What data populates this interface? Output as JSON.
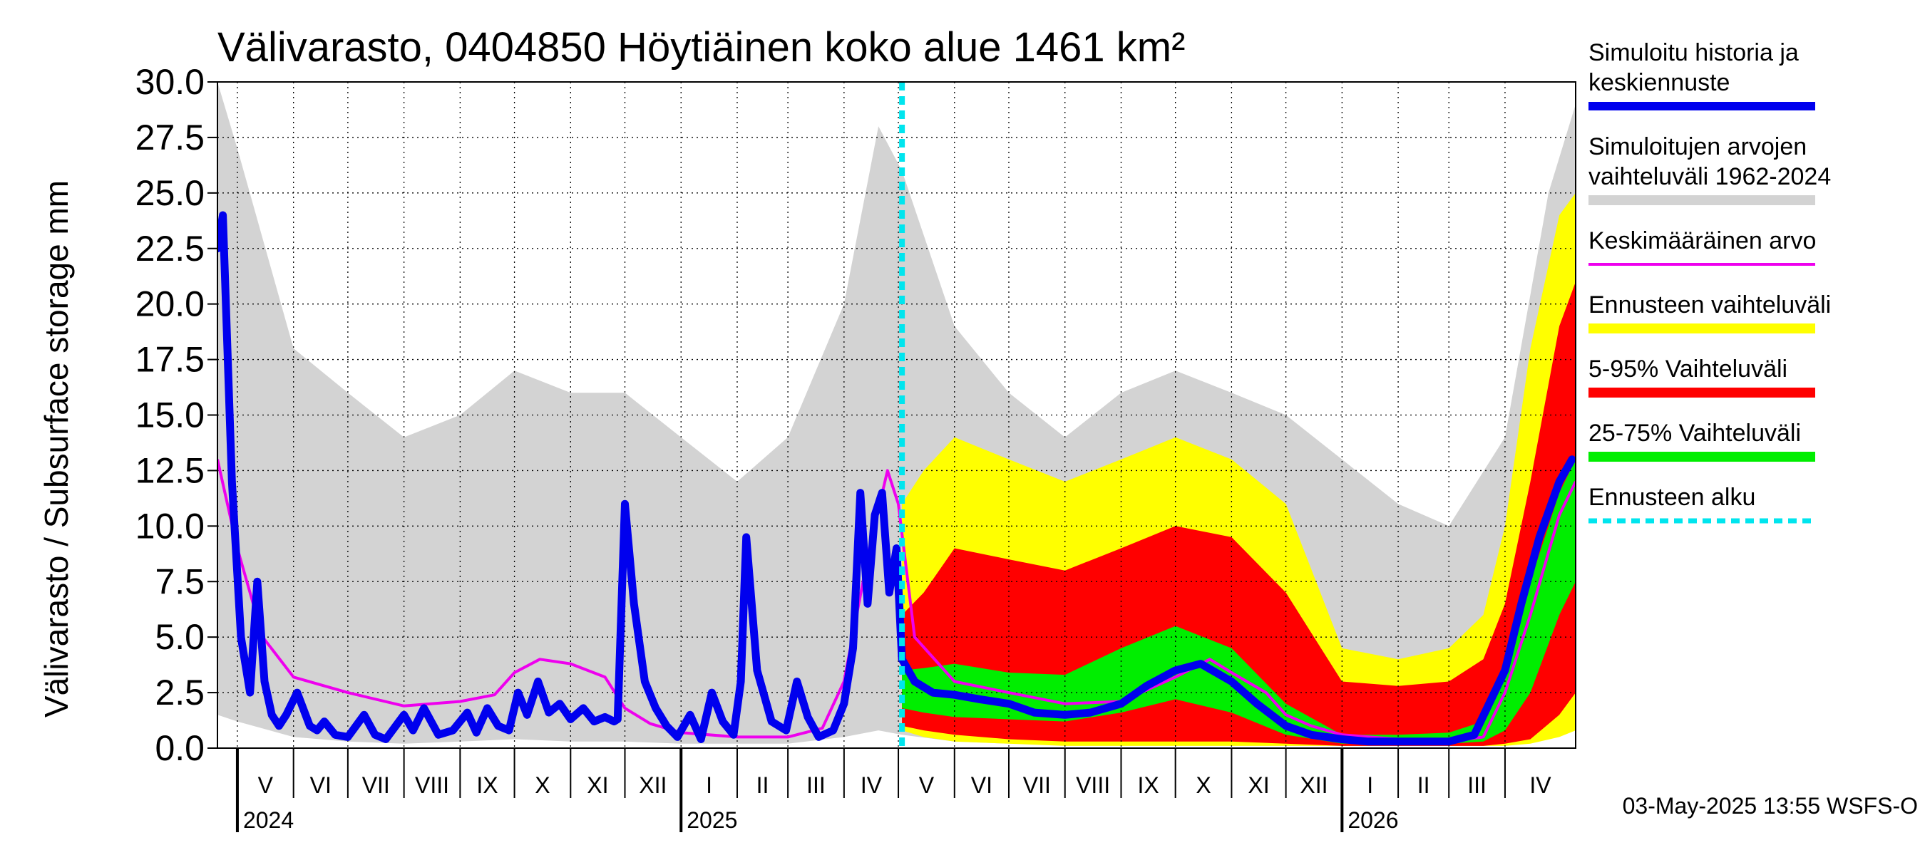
{
  "chart_data": {
    "type": "area",
    "title": "Välivarasto, 0404850 Höytiäinen koko alue 1461 km²",
    "ylabel": "Välivarasto / Subsurface storage  mm",
    "ylim": [
      0,
      30
    ],
    "yticks": [
      "0.0",
      "2.5",
      "5.0",
      "7.5",
      "10.0",
      "12.5",
      "15.0",
      "17.5",
      "20.0",
      "22.5",
      "25.0",
      "27.5",
      "30.0"
    ],
    "xlim": [
      "2024-04-20",
      "2026-05-10"
    ],
    "months": [
      {
        "label": "V",
        "start": "2024-05-01"
      },
      {
        "label": "VI",
        "start": "2024-06-01"
      },
      {
        "label": "VII",
        "start": "2024-07-01"
      },
      {
        "label": "VIII",
        "start": "2024-08-01"
      },
      {
        "label": "IX",
        "start": "2024-09-01"
      },
      {
        "label": "X",
        "start": "2024-10-01"
      },
      {
        "label": "XI",
        "start": "2024-11-01"
      },
      {
        "label": "XII",
        "start": "2024-12-01"
      },
      {
        "label": "I",
        "start": "2025-01-01"
      },
      {
        "label": "II",
        "start": "2025-02-01"
      },
      {
        "label": "III",
        "start": "2025-03-01"
      },
      {
        "label": "IV",
        "start": "2025-04-01"
      },
      {
        "label": "V",
        "start": "2025-05-01"
      },
      {
        "label": "VI",
        "start": "2025-06-01"
      },
      {
        "label": "VII",
        "start": "2025-07-01"
      },
      {
        "label": "VIII",
        "start": "2025-08-01"
      },
      {
        "label": "IX",
        "start": "2025-09-01"
      },
      {
        "label": "X",
        "start": "2025-10-01"
      },
      {
        "label": "XI",
        "start": "2025-11-01"
      },
      {
        "label": "XII",
        "start": "2025-12-01"
      },
      {
        "label": "I",
        "start": "2026-01-01"
      },
      {
        "label": "II",
        "start": "2026-02-01"
      },
      {
        "label": "III",
        "start": "2026-03-01"
      },
      {
        "label": "IV",
        "start": "2026-04-01"
      }
    ],
    "years": [
      {
        "label": "2024",
        "start": "2024-05-01"
      },
      {
        "label": "2025",
        "start": "2025-01-01"
      },
      {
        "label": "2026",
        "start": "2026-01-01"
      }
    ],
    "forecast_start": "2025-05-03",
    "history_range": {
      "x": [
        "2024-04-20",
        "2024-05-01",
        "2024-06-01",
        "2024-07-01",
        "2024-08-01",
        "2024-09-01",
        "2024-10-01",
        "2024-11-01",
        "2024-12-01",
        "2025-01-01",
        "2025-02-01",
        "2025-03-01",
        "2025-04-01",
        "2025-04-20",
        "2025-05-03",
        "2025-06-01",
        "2025-07-01",
        "2025-08-01",
        "2025-09-01",
        "2025-10-01",
        "2025-11-01",
        "2025-12-01",
        "2026-01-01",
        "2026-02-01",
        "2026-03-01",
        "2026-04-01",
        "2026-04-25",
        "2026-05-10"
      ],
      "low": [
        1.5,
        1.2,
        0.5,
        0.3,
        0.2,
        0.3,
        0.4,
        0.3,
        0.3,
        0.2,
        0.2,
        0.2,
        0.5,
        0.8,
        0.6,
        0.3,
        0.2,
        0.2,
        0.2,
        0.3,
        0.3,
        0.2,
        0.2,
        0.1,
        0.1,
        0.2,
        0.6,
        1.5
      ],
      "high": [
        30.0,
        27.0,
        18.0,
        16.0,
        14.0,
        15.0,
        17.0,
        16.0,
        16.0,
        14.0,
        12.0,
        14.0,
        20.0,
        28.0,
        26.0,
        19.0,
        16.0,
        14.0,
        16.0,
        17.0,
        16.0,
        15.0,
        13.0,
        11.0,
        10.0,
        14.0,
        25.0,
        29.0
      ]
    },
    "forecast_range": {
      "x": [
        "2025-05-03",
        "2025-05-15",
        "2025-06-01",
        "2025-07-01",
        "2025-08-01",
        "2025-09-01",
        "2025-10-01",
        "2025-11-01",
        "2025-12-01",
        "2026-01-01",
        "2026-02-01",
        "2026-03-01",
        "2026-03-20",
        "2026-04-01",
        "2026-04-15",
        "2026-05-01",
        "2026-05-10"
      ],
      "low": [
        0.8,
        0.5,
        0.3,
        0.2,
        0.1,
        0.1,
        0.1,
        0.1,
        0.1,
        0.1,
        0.1,
        0.1,
        0.1,
        0.1,
        0.2,
        0.5,
        0.8
      ],
      "high": [
        11.0,
        12.5,
        14.0,
        13.0,
        12.0,
        13.0,
        14.0,
        13.0,
        11.0,
        4.5,
        4.0,
        4.5,
        6.0,
        10.0,
        18.0,
        24.0,
        25.0
      ]
    },
    "forecast_5_95": {
      "x": [
        "2025-05-03",
        "2025-05-15",
        "2025-06-01",
        "2025-07-01",
        "2025-08-01",
        "2025-09-01",
        "2025-10-01",
        "2025-11-01",
        "2025-12-01",
        "2026-01-01",
        "2026-02-01",
        "2026-03-01",
        "2026-03-20",
        "2026-04-01",
        "2026-04-15",
        "2026-05-01",
        "2026-05-10"
      ],
      "low": [
        1.0,
        0.8,
        0.6,
        0.4,
        0.3,
        0.3,
        0.3,
        0.3,
        0.2,
        0.1,
        0.1,
        0.1,
        0.1,
        0.2,
        0.4,
        1.5,
        2.5
      ],
      "high": [
        6.0,
        7.0,
        9.0,
        8.5,
        8.0,
        9.0,
        10.0,
        9.5,
        7.0,
        3.0,
        2.8,
        3.0,
        4.0,
        6.5,
        12.0,
        19.0,
        21.0
      ]
    },
    "forecast_25_75": {
      "x": [
        "2025-05-03",
        "2025-05-15",
        "2025-06-01",
        "2025-07-01",
        "2025-08-01",
        "2025-09-01",
        "2025-10-01",
        "2025-11-01",
        "2025-12-01",
        "2026-01-01",
        "2026-02-01",
        "2026-03-01",
        "2026-03-20",
        "2026-04-01",
        "2026-04-15",
        "2026-05-01",
        "2026-05-10"
      ],
      "low": [
        1.8,
        1.6,
        1.4,
        1.3,
        1.2,
        1.6,
        2.2,
        1.6,
        0.6,
        0.2,
        0.2,
        0.2,
        0.3,
        0.8,
        2.5,
        6.0,
        7.5
      ],
      "high": [
        3.5,
        3.6,
        3.8,
        3.4,
        3.3,
        4.5,
        5.5,
        4.5,
        2.0,
        0.6,
        0.6,
        0.7,
        1.2,
        3.5,
        7.5,
        11.5,
        13.0
      ]
    },
    "simulated": {
      "x": [
        "2024-04-20",
        "2024-04-23",
        "2024-04-28",
        "2024-05-03",
        "2024-05-08",
        "2024-05-12",
        "2024-05-16",
        "2024-05-20",
        "2024-05-24",
        "2024-05-28",
        "2024-06-03",
        "2024-06-10",
        "2024-06-14",
        "2024-06-18",
        "2024-06-24",
        "2024-07-01",
        "2024-07-10",
        "2024-07-16",
        "2024-07-22",
        "2024-08-01",
        "2024-08-06",
        "2024-08-12",
        "2024-08-20",
        "2024-08-28",
        "2024-09-05",
        "2024-09-10",
        "2024-09-16",
        "2024-09-22",
        "2024-09-28",
        "2024-10-03",
        "2024-10-08",
        "2024-10-14",
        "2024-10-20",
        "2024-10-26",
        "2024-11-01",
        "2024-11-08",
        "2024-11-14",
        "2024-11-20",
        "2024-11-25",
        "2024-11-27",
        "2024-12-01",
        "2024-12-06",
        "2024-12-12",
        "2024-12-18",
        "2024-12-24",
        "2024-12-30",
        "2025-01-06",
        "2025-01-12",
        "2025-01-18",
        "2025-01-24",
        "2025-01-30",
        "2025-02-03",
        "2025-02-06",
        "2025-02-12",
        "2025-02-20",
        "2025-02-28",
        "2025-03-06",
        "2025-03-12",
        "2025-03-18",
        "2025-03-26",
        "2025-04-01",
        "2025-04-06",
        "2025-04-10",
        "2025-04-14",
        "2025-04-18",
        "2025-04-22",
        "2025-04-26",
        "2025-04-30",
        "2025-05-03",
        "2025-05-10",
        "2025-05-20",
        "2025-06-01",
        "2025-06-15",
        "2025-07-01",
        "2025-07-15",
        "2025-08-01",
        "2025-08-15",
        "2025-09-01",
        "2025-09-15",
        "2025-10-01",
        "2025-10-15",
        "2025-11-01",
        "2025-11-15",
        "2025-12-01",
        "2025-12-15",
        "2026-01-01",
        "2026-01-15",
        "2026-02-01",
        "2026-02-15",
        "2026-03-01",
        "2026-03-15",
        "2026-04-01",
        "2026-04-10",
        "2026-04-20",
        "2026-05-01",
        "2026-05-08"
      ],
      "y": [
        22.5,
        24.0,
        12.0,
        5.0,
        2.5,
        7.5,
        3.0,
        1.5,
        1.0,
        1.5,
        2.5,
        1.0,
        0.8,
        1.2,
        0.6,
        0.5,
        1.5,
        0.6,
        0.4,
        1.5,
        0.8,
        1.8,
        0.6,
        0.8,
        1.6,
        0.7,
        1.8,
        1.0,
        0.8,
        2.5,
        1.5,
        3.0,
        1.6,
        2.0,
        1.3,
        1.8,
        1.2,
        1.4,
        1.2,
        1.3,
        11.0,
        6.5,
        3.0,
        1.8,
        1.0,
        0.5,
        1.5,
        0.4,
        2.5,
        1.2,
        0.6,
        3.0,
        9.5,
        3.5,
        1.2,
        0.8,
        3.0,
        1.4,
        0.5,
        0.8,
        2.0,
        4.5,
        11.5,
        6.5,
        10.5,
        11.5,
        7.0,
        9.0,
        4.0,
        3.0,
        2.5,
        2.4,
        2.2,
        2.0,
        1.6,
        1.5,
        1.6,
        2.0,
        2.8,
        3.5,
        3.8,
        3.0,
        2.0,
        1.0,
        0.6,
        0.4,
        0.3,
        0.3,
        0.3,
        0.3,
        0.6,
        3.5,
        6.5,
        9.5,
        12.0,
        13.0
      ]
    },
    "mean": {
      "x": [
        "2024-04-20",
        "2024-05-01",
        "2024-05-15",
        "2024-06-01",
        "2024-07-01",
        "2024-08-01",
        "2024-09-01",
        "2024-09-20",
        "2024-10-01",
        "2024-10-15",
        "2024-11-01",
        "2024-11-20",
        "2024-12-01",
        "2024-12-15",
        "2025-01-01",
        "2025-02-01",
        "2025-03-01",
        "2025-03-20",
        "2025-04-01",
        "2025-04-15",
        "2025-04-25",
        "2025-05-01",
        "2025-05-10",
        "2025-06-01",
        "2025-07-01",
        "2025-08-01",
        "2025-09-01",
        "2025-10-01",
        "2025-10-20",
        "2025-11-01",
        "2025-11-20",
        "2025-12-01",
        "2025-12-15",
        "2026-01-01",
        "2026-02-01",
        "2026-03-01",
        "2026-03-20",
        "2026-04-01",
        "2026-04-15",
        "2026-05-01",
        "2026-05-10"
      ],
      "y": [
        13.0,
        9.0,
        5.0,
        3.2,
        2.5,
        1.9,
        2.1,
        2.4,
        3.4,
        4.0,
        3.8,
        3.2,
        1.8,
        1.1,
        0.7,
        0.5,
        0.5,
        0.9,
        3.0,
        9.0,
        12.5,
        11.0,
        5.0,
        3.0,
        2.5,
        2.0,
        2.1,
        3.2,
        4.0,
        3.4,
        2.5,
        1.5,
        1.0,
        0.6,
        0.4,
        0.3,
        0.5,
        2.5,
        6.0,
        10.5,
        12.0
      ]
    },
    "legend": [
      {
        "label": "Simuloitu historia ja keskiennuste",
        "lines": [
          "Simuloitu historia ja",
          "keskiennuste"
        ],
        "color": "#0000ee",
        "style": "thick"
      },
      {
        "label": "Simuloitujen arvojen vaihteluväli 1962-2024",
        "lines": [
          "Simuloitujen arvojen",
          "vaihteluväli 1962-2024"
        ],
        "color": "#d3d3d3",
        "style": "band"
      },
      {
        "label": "Keskimääräinen arvo",
        "lines": [
          "Keskimääräinen arvo"
        ],
        "color": "#ee00ee",
        "style": "thin"
      },
      {
        "label": "Ennusteen vaihteluväli",
        "lines": [
          "Ennusteen vaihteluväli"
        ],
        "color": "#ffff00",
        "style": "band"
      },
      {
        "label": "5-95% Vaihteluväli",
        "lines": [
          "5-95% Vaihteluväli"
        ],
        "color": "#ff0000",
        "style": "band"
      },
      {
        "label": "25-75% Vaihteluväli",
        "lines": [
          "25-75% Vaihteluväli"
        ],
        "color": "#00ee00",
        "style": "band"
      },
      {
        "label": "Ennusteen alku",
        "lines": [
          "Ennusteen alku"
        ],
        "color": "#00e5ee",
        "style": "dashed"
      }
    ],
    "timestamp": "03-May-2025 13:55 WSFS-O"
  }
}
